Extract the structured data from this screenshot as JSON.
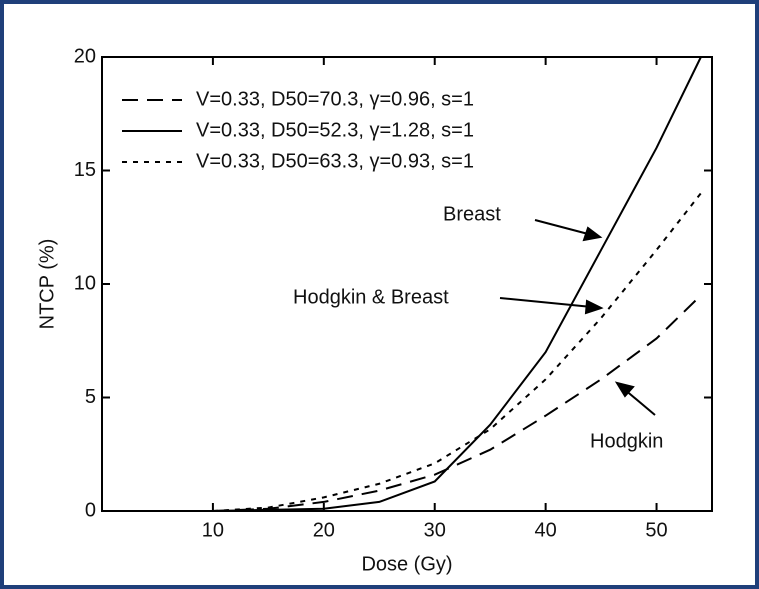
{
  "chart_data": {
    "type": "line",
    "xlabel": "Dose (Gy)",
    "ylabel": "NTCP (%)",
    "x": [
      10,
      15,
      20,
      25,
      30,
      35,
      40,
      45,
      50,
      54
    ],
    "series": [
      {
        "name": "V=0.33, D50=70.3, γ=0.96, s=1",
        "color": "#000000",
        "style": "dashed",
        "values": [
          0,
          0.1,
          0.4,
          0.9,
          1.6,
          2.7,
          4.2,
          5.8,
          7.6,
          9.5
        ]
      },
      {
        "name": "V=0.33, D50=52.3, γ=1.28, s=1",
        "color": "#000000",
        "style": "solid",
        "values": [
          0,
          0.05,
          0.1,
          0.4,
          1.3,
          3.8,
          7,
          11.5,
          16,
          20
        ]
      },
      {
        "name": "V=0.33, D50=63.3, γ=0.93, s=1",
        "color": "#000000",
        "style": "dotted",
        "values": [
          0,
          0.15,
          0.6,
          1.2,
          2.1,
          3.6,
          5.8,
          8.5,
          11.5,
          14
        ]
      }
    ],
    "annotations": [
      "Breast",
      "Hodgkin & Breast",
      "Hodgkin"
    ],
    "xlim": [
      0,
      55
    ],
    "ylim": [
      0,
      20
    ],
    "xticks": [
      10,
      20,
      30,
      40,
      50
    ],
    "yticks": [
      0,
      5,
      10,
      15,
      20
    ],
    "legend": "upper left"
  }
}
